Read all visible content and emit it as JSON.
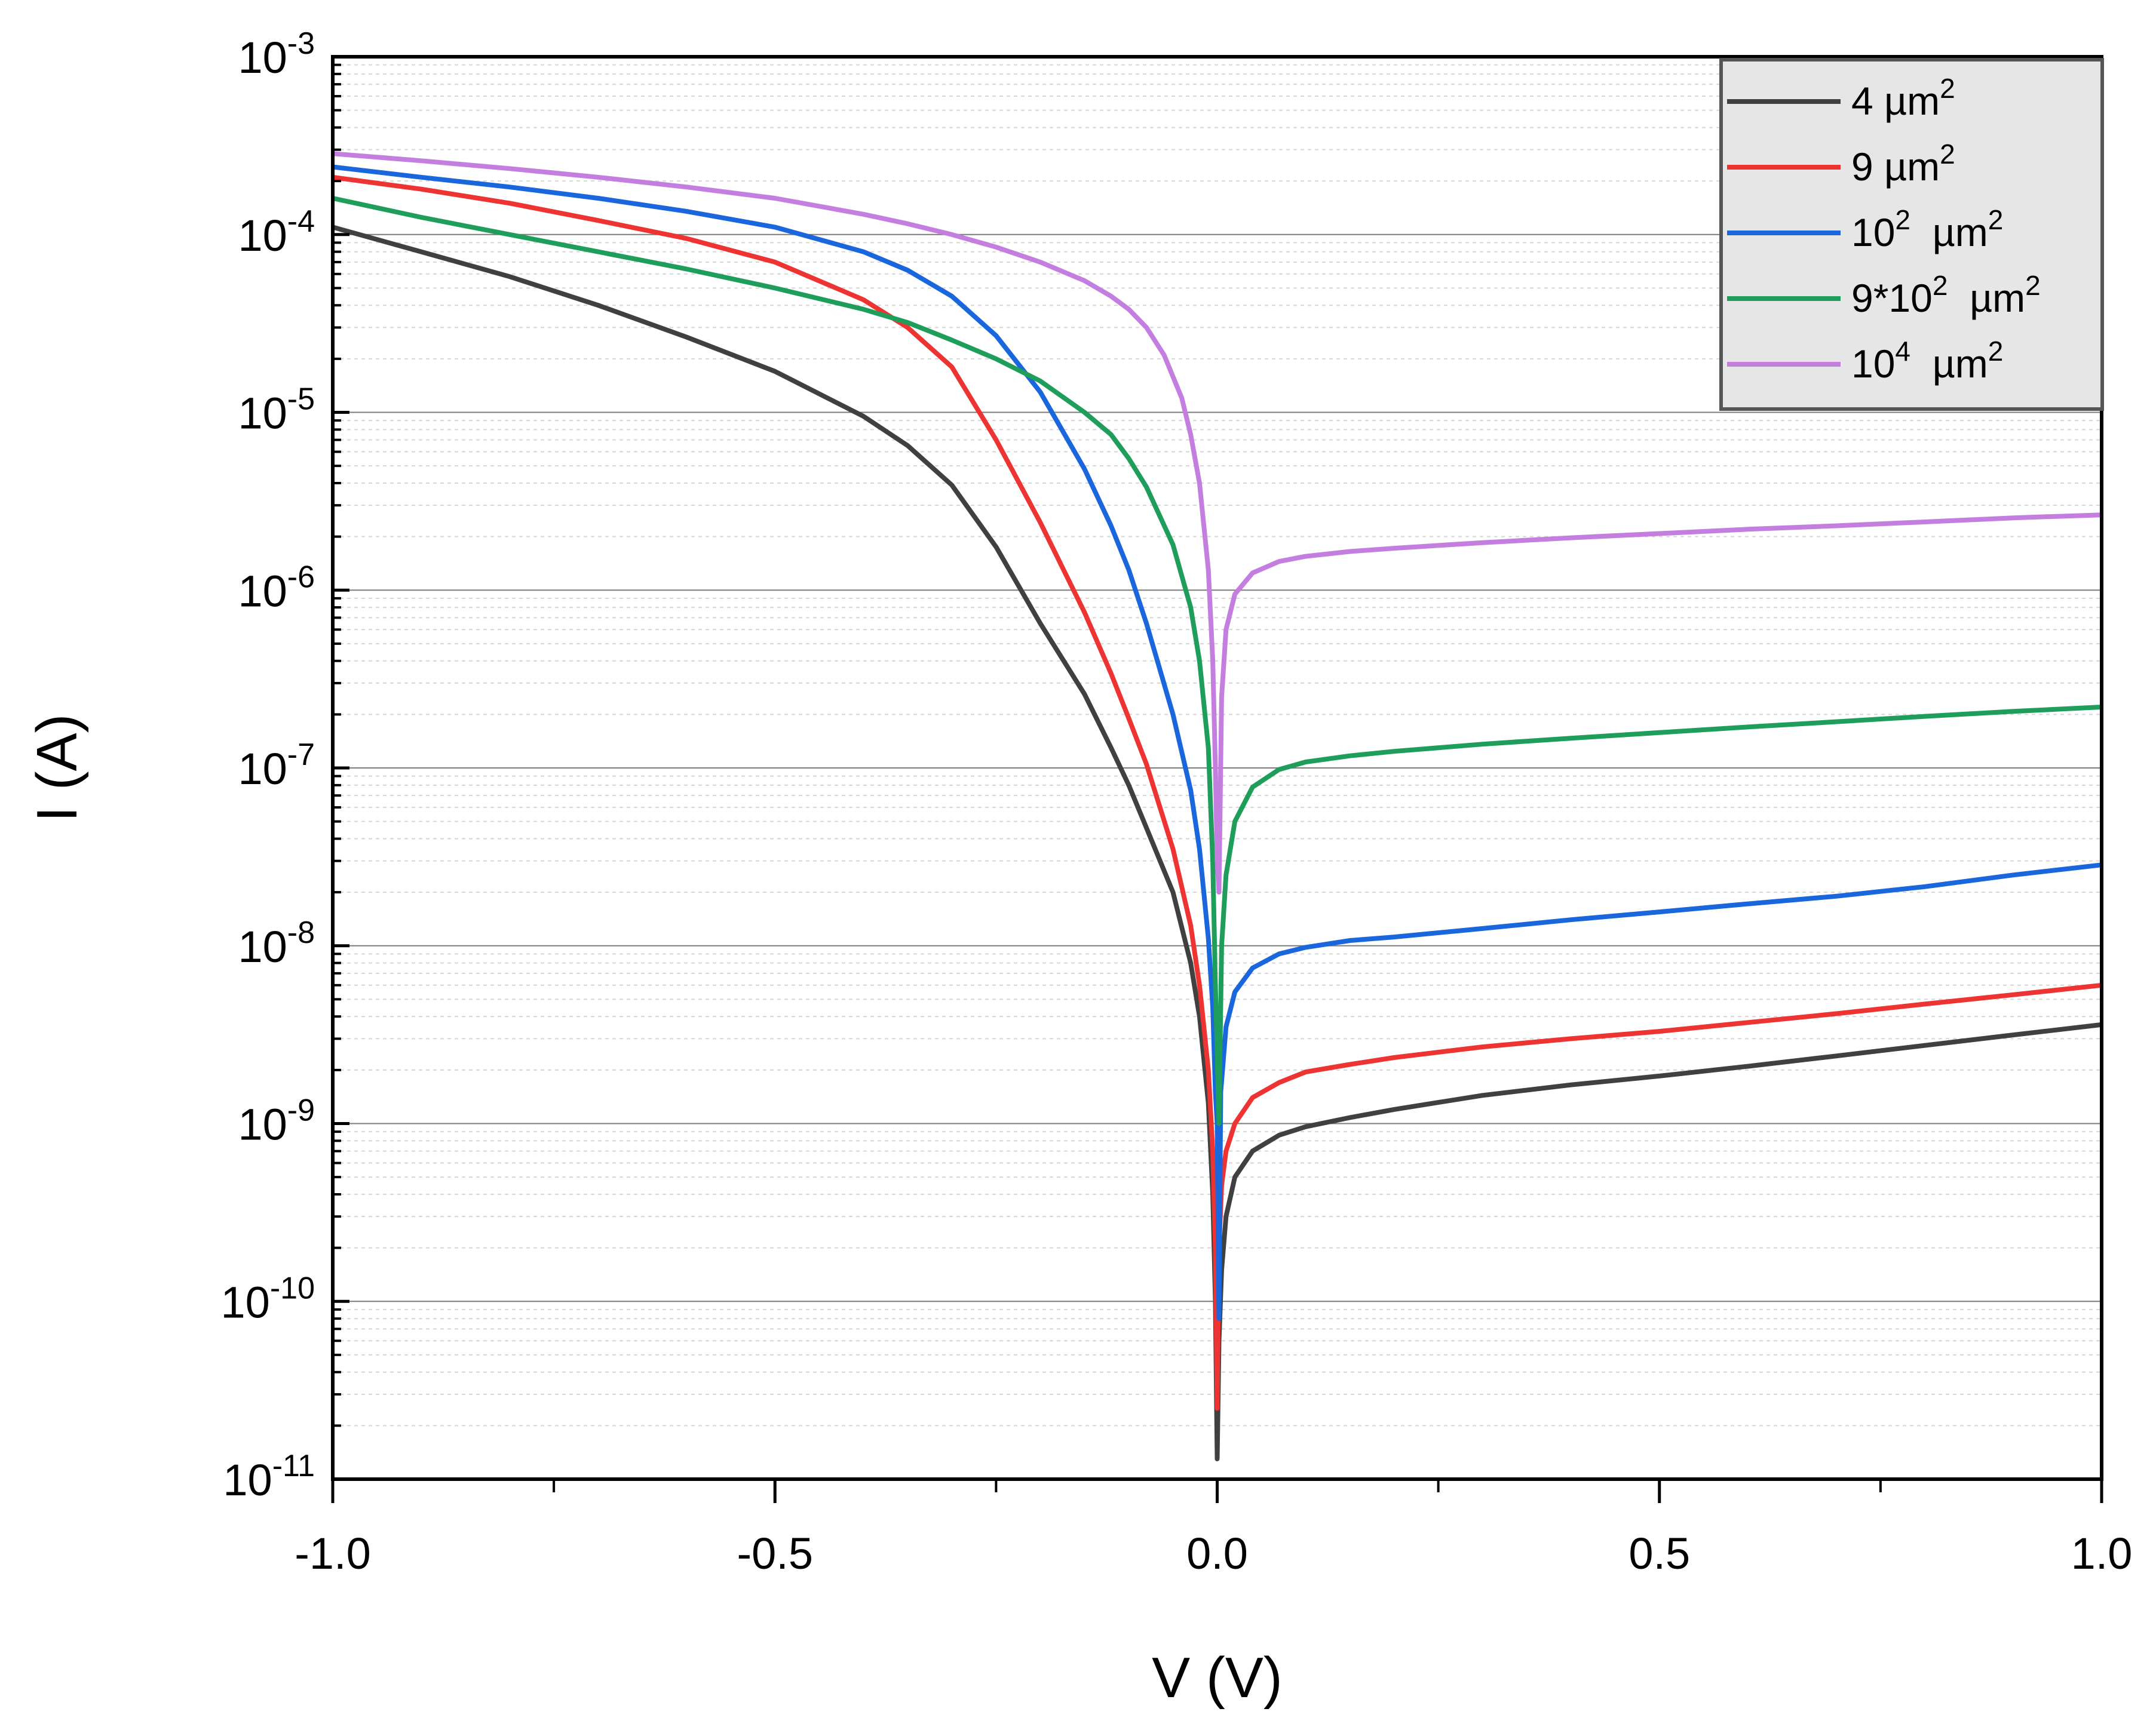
{
  "chart_data": {
    "type": "line",
    "title": "",
    "xlabel": "V (V)",
    "ylabel": "I (A)",
    "xlim": [
      -1.0,
      1.0
    ],
    "ylim": [
      1e-11,
      0.001
    ],
    "yscale": "log",
    "grid": true,
    "legend_position": "top-right",
    "x_ticks": [
      {
        "value": -1.0,
        "label": "-1.0"
      },
      {
        "value": -0.5,
        "label": "-0.5"
      },
      {
        "value": 0.0,
        "label": "0.0"
      },
      {
        "value": 0.5,
        "label": "0.5"
      },
      {
        "value": 1.0,
        "label": "1.0"
      }
    ],
    "y_ticks": [
      {
        "exp": -3,
        "base": "10",
        "sup": "-3"
      },
      {
        "exp": -4,
        "base": "10",
        "sup": "-4"
      },
      {
        "exp": -5,
        "base": "10",
        "sup": "-5"
      },
      {
        "exp": -6,
        "base": "10",
        "sup": "-6"
      },
      {
        "exp": -7,
        "base": "10",
        "sup": "-7"
      },
      {
        "exp": -8,
        "base": "10",
        "sup": "-8"
      },
      {
        "exp": -9,
        "base": "10",
        "sup": "-9"
      },
      {
        "exp": -10,
        "base": "10",
        "sup": "-10"
      },
      {
        "exp": -11,
        "base": "10",
        "sup": "-11"
      }
    ],
    "series": [
      {
        "name": "4 µm2",
        "label_main": "4 µm",
        "label_sup": "2",
        "color": "#404040",
        "points": [
          [
            -1.0,
            0.00011
          ],
          [
            -0.9,
            8e-05
          ],
          [
            -0.8,
            5.8e-05
          ],
          [
            -0.7,
            4e-05
          ],
          [
            -0.6,
            2.65e-05
          ],
          [
            -0.5,
            1.7e-05
          ],
          [
            -0.4,
            9.5e-06
          ],
          [
            -0.35,
            6.5e-06
          ],
          [
            -0.3,
            3.9e-06
          ],
          [
            -0.25,
            1.75e-06
          ],
          [
            -0.2,
            6.5e-07
          ],
          [
            -0.15,
            2.6e-07
          ],
          [
            -0.12,
            1.3e-07
          ],
          [
            -0.1,
            8e-08
          ],
          [
            -0.08,
            4.6e-08
          ],
          [
            -0.05,
            2e-08
          ],
          [
            -0.03,
            8e-09
          ],
          [
            -0.02,
            4e-09
          ],
          [
            -0.01,
            1.3e-09
          ],
          [
            -0.005,
            4e-10
          ],
          [
            -0.002,
            1e-10
          ],
          [
            0.0,
            1.3e-11
          ],
          [
            0.002,
            6e-11
          ],
          [
            0.005,
            1.5e-10
          ],
          [
            0.01,
            3e-10
          ],
          [
            0.02,
            5e-10
          ],
          [
            0.04,
            7e-10
          ],
          [
            0.07,
            8.6e-10
          ],
          [
            0.1,
            9.6e-10
          ],
          [
            0.15,
            1.08e-09
          ],
          [
            0.2,
            1.2e-09
          ],
          [
            0.3,
            1.44e-09
          ],
          [
            0.4,
            1.65e-09
          ],
          [
            0.5,
            1.85e-09
          ],
          [
            0.6,
            2.1e-09
          ],
          [
            0.7,
            2.4e-09
          ],
          [
            0.8,
            2.75e-09
          ],
          [
            0.9,
            3.15e-09
          ],
          [
            1.0,
            3.6e-09
          ]
        ]
      },
      {
        "name": "9 µm2",
        "label_main": "9 µm",
        "label_sup": "2",
        "color": "#ee3333",
        "points": [
          [
            -1.0,
            0.00021
          ],
          [
            -0.9,
            0.00018
          ],
          [
            -0.8,
            0.00015
          ],
          [
            -0.7,
            0.00012
          ],
          [
            -0.6,
            9.5e-05
          ],
          [
            -0.5,
            7e-05
          ],
          [
            -0.4,
            4.3e-05
          ],
          [
            -0.35,
            3e-05
          ],
          [
            -0.3,
            1.8e-05
          ],
          [
            -0.25,
            7e-06
          ],
          [
            -0.2,
            2.4e-06
          ],
          [
            -0.15,
            7.5e-07
          ],
          [
            -0.12,
            3.4e-07
          ],
          [
            -0.1,
            1.9e-07
          ],
          [
            -0.08,
            1.05e-07
          ],
          [
            -0.05,
            3.5e-08
          ],
          [
            -0.03,
            1.3e-08
          ],
          [
            -0.02,
            6e-09
          ],
          [
            -0.01,
            2e-09
          ],
          [
            -0.005,
            7e-10
          ],
          [
            -0.002,
            2e-10
          ],
          [
            0.0,
            2.5e-11
          ],
          [
            0.002,
            2e-10
          ],
          [
            0.005,
            4.5e-10
          ],
          [
            0.01,
            7e-10
          ],
          [
            0.02,
            1e-09
          ],
          [
            0.04,
            1.4e-09
          ],
          [
            0.07,
            1.7e-09
          ],
          [
            0.1,
            1.95e-09
          ],
          [
            0.15,
            2.15e-09
          ],
          [
            0.2,
            2.35e-09
          ],
          [
            0.3,
            2.7e-09
          ],
          [
            0.4,
            3e-09
          ],
          [
            0.5,
            3.3e-09
          ],
          [
            0.6,
            3.7e-09
          ],
          [
            0.7,
            4.15e-09
          ],
          [
            0.8,
            4.7e-09
          ],
          [
            0.9,
            5.3e-09
          ],
          [
            1.0,
            6e-09
          ]
        ]
      },
      {
        "name": "10^2 µm2",
        "label_main": "10",
        "label_sup": "2",
        "label_tail": " µm",
        "label_sup2": "2",
        "color": "#1a66dd",
        "points": [
          [
            -1.0,
            0.00024
          ],
          [
            -0.9,
            0.00021
          ],
          [
            -0.8,
            0.000185
          ],
          [
            -0.7,
            0.00016
          ],
          [
            -0.6,
            0.000135
          ],
          [
            -0.5,
            0.00011
          ],
          [
            -0.4,
            8e-05
          ],
          [
            -0.35,
            6.3e-05
          ],
          [
            -0.3,
            4.5e-05
          ],
          [
            -0.25,
            2.7e-05
          ],
          [
            -0.2,
            1.3e-05
          ],
          [
            -0.15,
            4.8e-06
          ],
          [
            -0.12,
            2.3e-06
          ],
          [
            -0.1,
            1.3e-06
          ],
          [
            -0.08,
            6.5e-07
          ],
          [
            -0.05,
            2e-07
          ],
          [
            -0.03,
            7.5e-08
          ],
          [
            -0.02,
            3.5e-08
          ],
          [
            -0.01,
            1.1e-08
          ],
          [
            -0.005,
            4.5e-09
          ],
          [
            -0.002,
            1.5e-09
          ],
          [
            0.0,
            1e-09
          ],
          [
            0.002,
            8e-11
          ],
          [
            0.004,
            1.5e-09
          ],
          [
            0.01,
            3.5e-09
          ],
          [
            0.02,
            5.5e-09
          ],
          [
            0.04,
            7.5e-09
          ],
          [
            0.07,
            9e-09
          ],
          [
            0.1,
            9.8e-09
          ],
          [
            0.15,
            1.07e-08
          ],
          [
            0.2,
            1.12e-08
          ],
          [
            0.3,
            1.25e-08
          ],
          [
            0.4,
            1.4e-08
          ],
          [
            0.5,
            1.55e-08
          ],
          [
            0.6,
            1.72e-08
          ],
          [
            0.7,
            1.9e-08
          ],
          [
            0.8,
            2.15e-08
          ],
          [
            0.9,
            2.5e-08
          ],
          [
            1.0,
            2.85e-08
          ]
        ]
      },
      {
        "name": "9*10^2 µm2",
        "label_main": "9*10",
        "label_sup": "2",
        "label_tail": " µm",
        "label_sup2": "2",
        "color": "#1e9e5a",
        "points": [
          [
            -1.0,
            0.00016
          ],
          [
            -0.9,
            0.000125
          ],
          [
            -0.8,
            0.0001
          ],
          [
            -0.7,
            8e-05
          ],
          [
            -0.6,
            6.4e-05
          ],
          [
            -0.5,
            5e-05
          ],
          [
            -0.4,
            3.8e-05
          ],
          [
            -0.35,
            3.2e-05
          ],
          [
            -0.3,
            2.55e-05
          ],
          [
            -0.25,
            2e-05
          ],
          [
            -0.2,
            1.5e-05
          ],
          [
            -0.15,
            1e-05
          ],
          [
            -0.12,
            7.5e-06
          ],
          [
            -0.1,
            5.5e-06
          ],
          [
            -0.08,
            3.8e-06
          ],
          [
            -0.05,
            1.8e-06
          ],
          [
            -0.03,
            8e-07
          ],
          [
            -0.02,
            4e-07
          ],
          [
            -0.01,
            1.3e-07
          ],
          [
            -0.005,
            3e-08
          ],
          [
            -0.002,
            6e-09
          ],
          [
            0.0,
            2.5e-09
          ],
          [
            0.002,
            1e-09
          ],
          [
            0.005,
            1e-08
          ],
          [
            0.01,
            2.5e-08
          ],
          [
            0.02,
            5e-08
          ],
          [
            0.04,
            7.8e-08
          ],
          [
            0.07,
            9.8e-08
          ],
          [
            0.1,
            1.08e-07
          ],
          [
            0.15,
            1.17e-07
          ],
          [
            0.2,
            1.24e-07
          ],
          [
            0.3,
            1.36e-07
          ],
          [
            0.4,
            1.47e-07
          ],
          [
            0.5,
            1.58e-07
          ],
          [
            0.6,
            1.7e-07
          ],
          [
            0.7,
            1.82e-07
          ],
          [
            0.8,
            1.95e-07
          ],
          [
            0.9,
            2.08e-07
          ],
          [
            1.0,
            2.2e-07
          ]
        ]
      },
      {
        "name": "10^4 µm2",
        "label_main": "10",
        "label_sup": "4",
        "label_tail": " µm",
        "label_sup2": "2",
        "color": "#c47ee0",
        "points": [
          [
            -1.0,
            0.000285
          ],
          [
            -0.9,
            0.00026
          ],
          [
            -0.8,
            0.000235
          ],
          [
            -0.7,
            0.00021
          ],
          [
            -0.6,
            0.000185
          ],
          [
            -0.5,
            0.00016
          ],
          [
            -0.4,
            0.00013
          ],
          [
            -0.35,
            0.000115
          ],
          [
            -0.3,
            0.0001
          ],
          [
            -0.25,
            8.5e-05
          ],
          [
            -0.2,
            7e-05
          ],
          [
            -0.15,
            5.5e-05
          ],
          [
            -0.12,
            4.5e-05
          ],
          [
            -0.1,
            3.8e-05
          ],
          [
            -0.08,
            3e-05
          ],
          [
            -0.06,
            2.1e-05
          ],
          [
            -0.04,
            1.2e-05
          ],
          [
            -0.03,
            7.5e-06
          ],
          [
            -0.02,
            4e-06
          ],
          [
            -0.01,
            1.3e-06
          ],
          [
            -0.005,
            4e-07
          ],
          [
            -0.002,
            1e-07
          ],
          [
            0.0,
            3e-08
          ],
          [
            0.002,
            2e-08
          ],
          [
            0.005,
            2.5e-07
          ],
          [
            0.01,
            6e-07
          ],
          [
            0.02,
            9.5e-07
          ],
          [
            0.04,
            1.25e-06
          ],
          [
            0.07,
            1.45e-06
          ],
          [
            0.1,
            1.55e-06
          ],
          [
            0.15,
            1.65e-06
          ],
          [
            0.2,
            1.72e-06
          ],
          [
            0.3,
            1.85e-06
          ],
          [
            0.4,
            1.97e-06
          ],
          [
            0.5,
            2.08e-06
          ],
          [
            0.6,
            2.2e-06
          ],
          [
            0.7,
            2.3e-06
          ],
          [
            0.8,
            2.42e-06
          ],
          [
            0.9,
            2.55e-06
          ],
          [
            1.0,
            2.65e-06
          ]
        ]
      }
    ]
  }
}
